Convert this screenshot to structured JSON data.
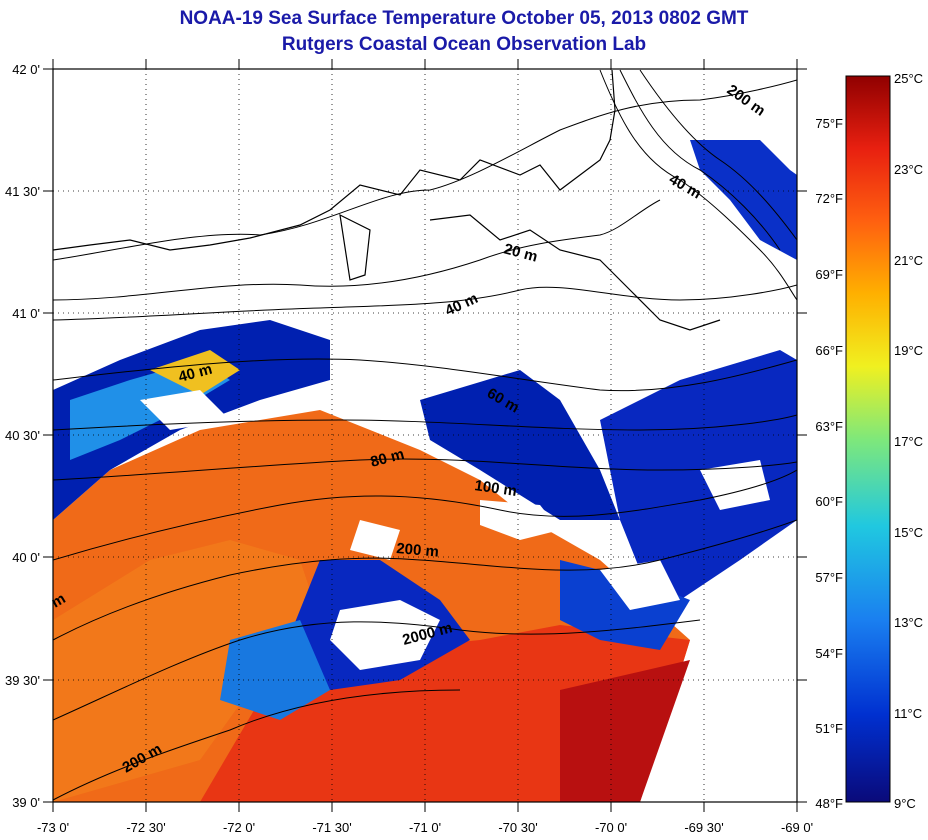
{
  "title": "NOAA-19 Sea Surface Temperature October 05, 2013 0802 GMT",
  "subtitle": "Rutgers Coastal Ocean Observation Lab",
  "map": {
    "lon_range": [
      -73,
      -69
    ],
    "lat_range": [
      39,
      42
    ],
    "lon_ticks": [
      "-73 0'",
      "-72 30'",
      "-72 0'",
      "-71 30'",
      "-71 0'",
      "-70 30'",
      "-70 0'",
      "-69 30'",
      "-69 0'"
    ],
    "lat_ticks": [
      "42 0'",
      "41 30'",
      "41 0'",
      "40 30'",
      "40 0'",
      "39 30'",
      "39 0'"
    ],
    "grid": "dotted"
  },
  "contour_labels": [
    "200 m",
    "40 m",
    "20 m",
    "40 m",
    "40 m",
    "60 m",
    "80 m",
    "100 m",
    "200 m",
    "2000 m",
    "200 m",
    "m"
  ],
  "colorbar": {
    "celsius_labels": [
      "25°C",
      "23°C",
      "21°C",
      "19°C",
      "17°C",
      "15°C",
      "13°C",
      "11°C",
      "9°C"
    ],
    "fahrenheit_labels": [
      "75°F",
      "72°F",
      "69°F",
      "66°F",
      "63°F",
      "60°F",
      "57°F",
      "54°F",
      "51°F",
      "48°F"
    ],
    "range_c": [
      9,
      25
    ],
    "colors": [
      "#0a0a7a",
      "#0030d0",
      "#1a7ff0",
      "#20c8e0",
      "#7fe87a",
      "#f0f020",
      "#ffb000",
      "#ff6010",
      "#e82010",
      "#900000"
    ]
  }
}
